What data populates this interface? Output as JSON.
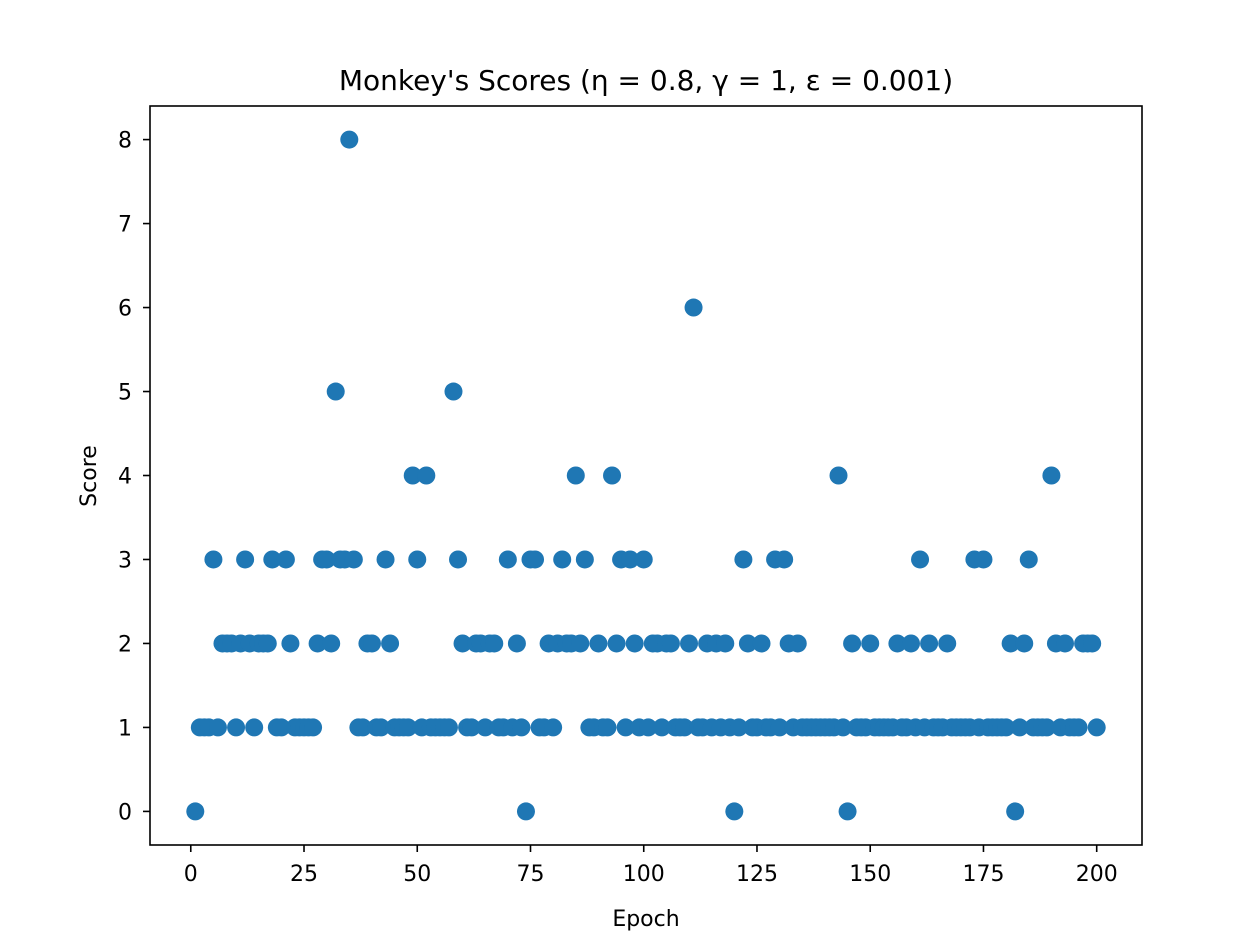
{
  "chart_data": {
    "type": "scatter",
    "title": "Monkey's Scores (η = 0.8, γ = 1, ε = 0.001)",
    "xlabel": "Epoch",
    "ylabel": "Score",
    "xlim": [
      -9,
      210
    ],
    "ylim": [
      -0.4,
      8.4
    ],
    "xticks": [
      0,
      25,
      50,
      75,
      100,
      125,
      150,
      175,
      200
    ],
    "yticks": [
      0,
      1,
      2,
      3,
      4,
      5,
      6,
      7,
      8
    ],
    "grid": false,
    "marker_color": "#1f77b4",
    "series": [
      {
        "x": [
          1,
          2,
          3,
          4,
          5,
          6,
          7,
          8,
          9,
          10,
          11,
          12,
          13,
          14,
          15,
          16,
          17,
          18,
          19,
          20,
          21,
          22,
          23,
          24,
          25,
          26,
          27,
          28,
          29,
          30,
          31,
          32,
          33,
          34,
          35,
          36,
          37,
          38,
          39,
          40,
          41,
          42,
          43,
          44,
          45,
          46,
          47,
          48,
          49,
          50,
          51,
          52,
          53,
          54,
          55,
          56,
          57,
          58,
          59,
          60,
          61,
          62,
          63,
          64,
          65,
          66,
          67,
          68,
          69,
          70,
          71,
          72,
          73,
          74,
          75,
          76,
          77,
          78,
          79,
          80,
          81,
          82,
          83,
          84,
          85,
          86,
          87,
          88,
          89,
          90,
          91,
          92,
          93,
          94,
          95,
          96,
          97,
          98,
          99,
          100,
          101,
          102,
          103,
          104,
          105,
          106,
          107,
          108,
          109,
          110,
          111,
          112,
          113,
          114,
          115,
          116,
          117,
          118,
          119,
          120,
          121,
          122,
          123,
          124,
          125,
          126,
          127,
          128,
          129,
          130,
          131,
          132,
          133,
          134,
          135,
          136,
          137,
          138,
          139,
          140,
          141,
          142,
          143,
          144,
          145,
          146,
          147,
          148,
          149,
          150,
          151,
          152,
          153,
          154,
          155,
          156,
          157,
          158,
          159,
          160,
          161,
          162,
          163,
          164,
          165,
          166,
          167,
          168,
          169,
          170,
          171,
          172,
          173,
          174,
          175,
          176,
          177,
          178,
          179,
          180,
          181,
          182,
          183,
          184,
          185,
          186,
          187,
          188,
          189,
          190,
          191,
          192,
          193,
          194,
          195,
          196,
          197,
          198,
          199,
          200
        ],
        "y": [
          0,
          1,
          1,
          1,
          3,
          1,
          2,
          2,
          2,
          1,
          2,
          3,
          2,
          1,
          2,
          2,
          2,
          3,
          1,
          1,
          3,
          2,
          1,
          1,
          1,
          1,
          1,
          2,
          3,
          3,
          2,
          5,
          3,
          3,
          8,
          3,
          1,
          1,
          2,
          2,
          1,
          1,
          3,
          2,
          1,
          1,
          1,
          1,
          4,
          3,
          1,
          4,
          1,
          1,
          1,
          1,
          1,
          5,
          3,
          2,
          1,
          1,
          2,
          2,
          1,
          2,
          2,
          1,
          1,
          3,
          1,
          2,
          1,
          0,
          3,
          3,
          1,
          1,
          2,
          1,
          2,
          3,
          2,
          2,
          4,
          2,
          3,
          1,
          1,
          2,
          1,
          1,
          4,
          2,
          3,
          1,
          3,
          2,
          1,
          3,
          1,
          2,
          2,
          1,
          2,
          2,
          1,
          1,
          1,
          2,
          6,
          1,
          1,
          2,
          1,
          2,
          1,
          2,
          1,
          0,
          1,
          3,
          2,
          1,
          1,
          2,
          1,
          1,
          3,
          1,
          3,
          2,
          1,
          2,
          1,
          1,
          1,
          1,
          1,
          1,
          1,
          1,
          4,
          1,
          0,
          2,
          1,
          1,
          1,
          2,
          1,
          1,
          1,
          1,
          1,
          2,
          1,
          1,
          2,
          1,
          3,
          1,
          2,
          1,
          1,
          1,
          2,
          1,
          1,
          1,
          1,
          1,
          3,
          1,
          3,
          1,
          1,
          1,
          1,
          1,
          2,
          0,
          1,
          2,
          3,
          1,
          1,
          1,
          1,
          4,
          2,
          1,
          2,
          1,
          1,
          1,
          2,
          2,
          2,
          1
        ]
      }
    ]
  }
}
